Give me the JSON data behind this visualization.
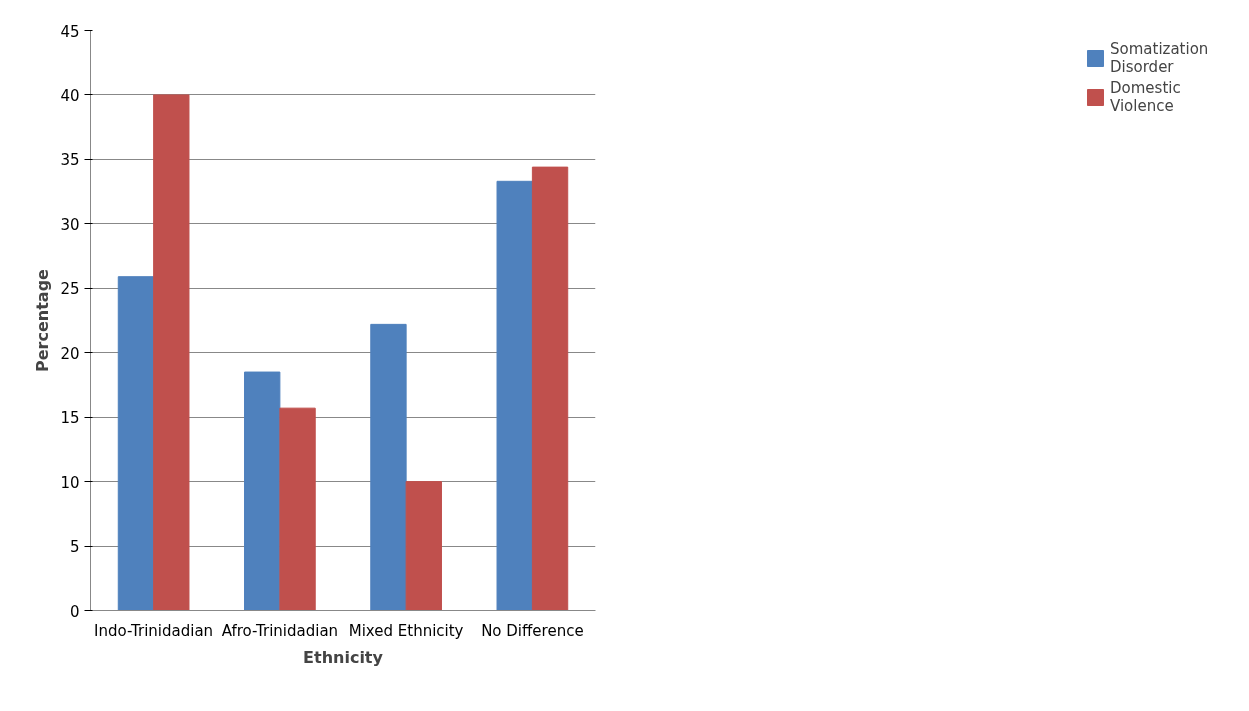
{
  "chart_data": {
    "type": "bar",
    "xlabel": "Ethnicity",
    "ylabel": "Percentage",
    "categories": [
      "Indo-Trinidadian",
      "Afro-Trinidadian",
      "Mixed Ethnicity",
      "No Difference"
    ],
    "series": [
      {
        "name": "Somatization Disorder",
        "color": "#4f81bd",
        "values": [
          25.9,
          18.5,
          22.2,
          33.3
        ]
      },
      {
        "name": "Domestic Violence",
        "color": "#c0504d",
        "values": [
          40,
          15.7,
          10,
          34.4
        ]
      }
    ],
    "ylim": [
      0,
      45
    ],
    "yticks": [
      0,
      5,
      10,
      15,
      20,
      25,
      30,
      35,
      40,
      45
    ],
    "grid": "y",
    "legend": "right"
  }
}
